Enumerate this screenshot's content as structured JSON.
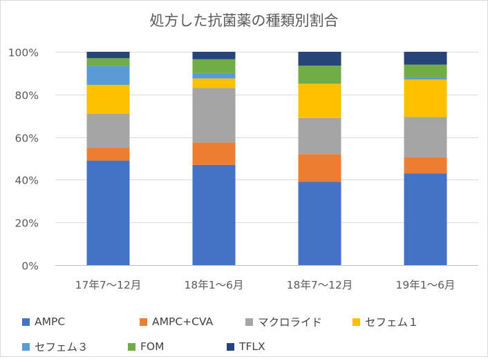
{
  "chart_data": {
    "type": "bar",
    "stacked": "100%",
    "title": "処方した抗菌薬の種類別割合",
    "categories": [
      "17年7～12月",
      "18年1～6月",
      "18年7～12月",
      "19年1～6月"
    ],
    "y_ticks": [
      "0%",
      "20%",
      "40%",
      "60%",
      "80%",
      "100%"
    ],
    "ylim": [
      0,
      100
    ],
    "grid": true,
    "legend_position": "bottom",
    "series": [
      {
        "name": "AMPC",
        "color": "#4472c4",
        "values": [
          49,
          47,
          39,
          43
        ]
      },
      {
        "name": "AMPC+CVA",
        "color": "#ed7d31",
        "values": [
          6,
          10.5,
          13,
          7.5
        ]
      },
      {
        "name": "マクロライド",
        "color": "#a5a5a5",
        "values": [
          16,
          25.5,
          17,
          19
        ]
      },
      {
        "name": "セフェム１",
        "color": "#ffc000",
        "values": [
          13.5,
          4.5,
          16,
          17.5
        ]
      },
      {
        "name": "セフェム３",
        "color": "#5b9bd5",
        "values": [
          9,
          2.5,
          0,
          1
        ]
      },
      {
        "name": "FOM",
        "color": "#70ad47",
        "values": [
          3.5,
          6.5,
          8.5,
          6
        ]
      },
      {
        "name": "TFLX",
        "color": "#264478",
        "values": [
          3,
          3.5,
          6.5,
          6
        ]
      }
    ]
  }
}
